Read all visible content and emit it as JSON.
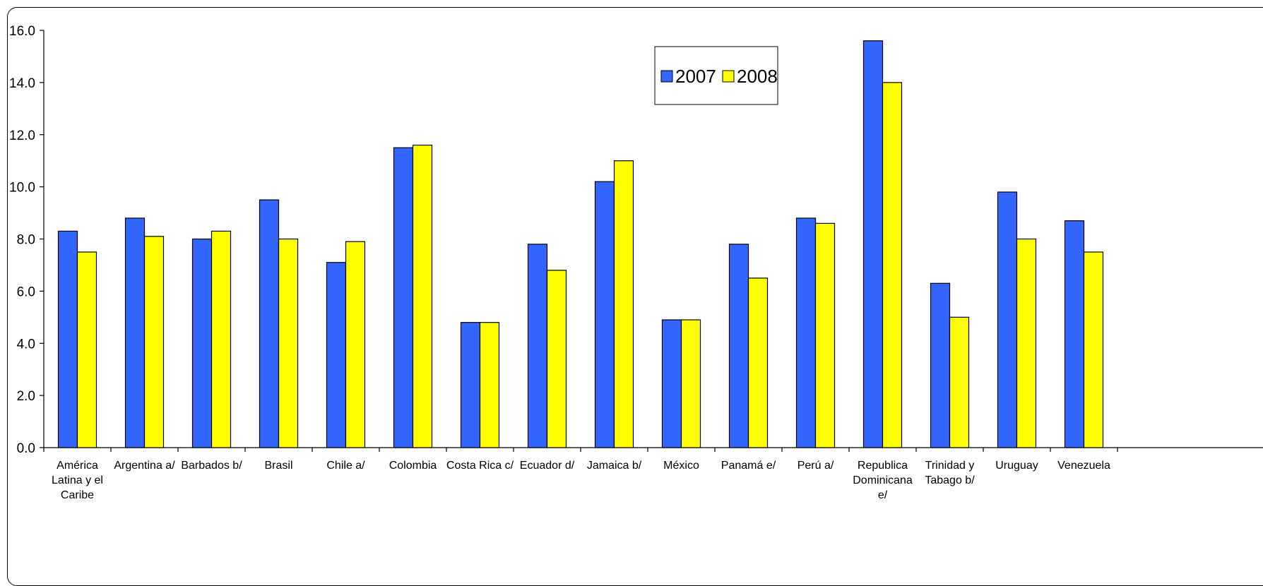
{
  "chart_data": {
    "type": "bar",
    "title": "",
    "xlabel": "",
    "ylabel": "",
    "ylim": [
      0,
      16
    ],
    "yticks": [
      "0.0",
      "2.0",
      "4.0",
      "6.0",
      "8.0",
      "10.0",
      "12.0",
      "14.0",
      "16.0"
    ],
    "grid": false,
    "legend_position": "top-right",
    "categories": [
      [
        "América",
        "Latina y el",
        "Caribe"
      ],
      [
        "Argentina a/"
      ],
      [
        "Barbados b/"
      ],
      [
        "Brasil"
      ],
      [
        "Chile a/"
      ],
      [
        "Colombia"
      ],
      [
        "Costa Rica c/"
      ],
      [
        "Ecuador d/"
      ],
      [
        "Jamaica b/"
      ],
      [
        "México"
      ],
      [
        "Panamá e/"
      ],
      [
        "Perú a/"
      ],
      [
        "Republica",
        "Dominicana",
        "e/"
      ],
      [
        "Trinidad y",
        "Tabago b/"
      ],
      [
        "Uruguay"
      ],
      [
        "Venezuela"
      ]
    ],
    "series": [
      {
        "name": "2007",
        "color": "#3366ff",
        "values": [
          8.3,
          8.8,
          8.0,
          9.5,
          7.1,
          11.5,
          4.8,
          7.8,
          10.2,
          4.9,
          7.8,
          8.8,
          15.6,
          6.3,
          9.8,
          8.7
        ]
      },
      {
        "name": "2008",
        "color": "#ffff00",
        "values": [
          7.5,
          8.1,
          8.3,
          8.0,
          7.9,
          11.6,
          4.8,
          6.8,
          11.0,
          4.9,
          6.5,
          8.6,
          14.0,
          5.0,
          8.0,
          7.5
        ]
      }
    ]
  }
}
